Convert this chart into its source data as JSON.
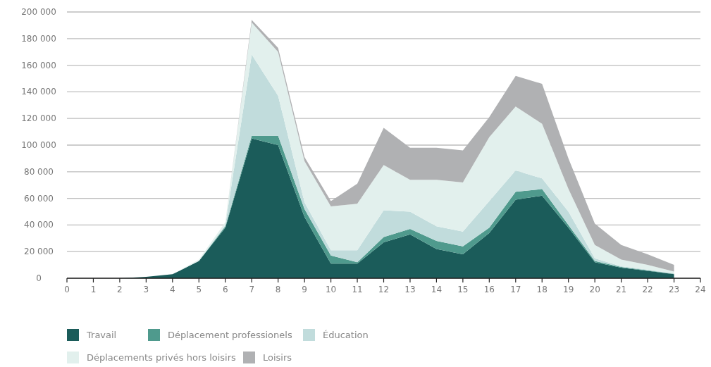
{
  "chart_data": {
    "type": "area",
    "stacked": true,
    "x": [
      0,
      1,
      2,
      3,
      4,
      5,
      6,
      7,
      8,
      9,
      10,
      11,
      12,
      13,
      14,
      15,
      16,
      17,
      18,
      19,
      20,
      21,
      22,
      23
    ],
    "xlim": [
      0,
      24
    ],
    "xticks": [
      0,
      1,
      2,
      3,
      4,
      5,
      6,
      7,
      8,
      9,
      10,
      11,
      12,
      13,
      14,
      15,
      16,
      17,
      18,
      19,
      20,
      21,
      22,
      23,
      24
    ],
    "ylim": [
      0,
      200000
    ],
    "yticks": [
      {
        "value": 0,
        "label": "0"
      },
      {
        "value": 20000,
        "label": "20 000"
      },
      {
        "value": 40000,
        "label": "40 000"
      },
      {
        "value": 60000,
        "label": "60 000"
      },
      {
        "value": 80000,
        "label": "80 000"
      },
      {
        "value": 100000,
        "label": "100 000"
      },
      {
        "value": 120000,
        "label": "120 000"
      },
      {
        "value": 140000,
        "label": "140 000"
      },
      {
        "value": 160000,
        "label": "160 000"
      },
      {
        "value": 180000,
        "label": "180 000"
      },
      {
        "value": 200000,
        "label": "200 000"
      }
    ],
    "grid": "y",
    "legend": "bottom",
    "series": [
      {
        "name": "Travail",
        "color": "#1b5c5a",
        "values": [
          0,
          0,
          0,
          1000,
          3000,
          13000,
          38000,
          105000,
          100000,
          46000,
          11000,
          11000,
          27000,
          33000,
          22000,
          18000,
          34000,
          59000,
          62000,
          38000,
          12000,
          8000,
          5500,
          3000
        ]
      },
      {
        "name": "Déplacement professionels",
        "color": "#4f9a8d",
        "values": [
          0,
          0,
          0,
          0,
          0,
          0,
          1000,
          2000,
          7000,
          6000,
          6000,
          1000,
          4000,
          4000,
          6000,
          6000,
          4000,
          6000,
          5000,
          2000,
          1000,
          500,
          500,
          300
        ]
      },
      {
        "name": "Éducation",
        "color": "#c1dcdc",
        "values": [
          0,
          0,
          0,
          0,
          0,
          0,
          1000,
          61000,
          30000,
          5000,
          4000,
          9000,
          20000,
          13000,
          11000,
          11000,
          20000,
          16000,
          8000,
          10000,
          2000,
          500,
          500,
          300
        ]
      },
      {
        "name": "Déplacements privés hors loisirs",
        "color": "#e2f0ed",
        "values": [
          0,
          0,
          0,
          0,
          0,
          1000,
          2000,
          24000,
          33000,
          31000,
          33000,
          35000,
          34000,
          24000,
          35000,
          37000,
          48000,
          48000,
          41000,
          17000,
          10000,
          5000,
          3500,
          1400
        ]
      },
      {
        "name": "Loisirs",
        "color": "#b0b1b3",
        "values": [
          0,
          0,
          0,
          0,
          0,
          0,
          0,
          2000,
          3000,
          3000,
          4000,
          15000,
          28000,
          24000,
          24000,
          24000,
          15000,
          23000,
          30000,
          23000,
          16000,
          11000,
          8000,
          5000
        ]
      }
    ]
  }
}
